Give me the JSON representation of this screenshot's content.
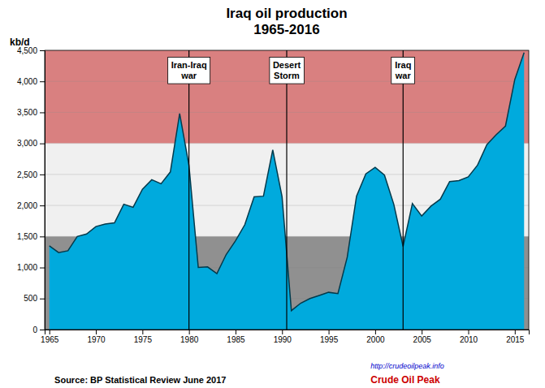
{
  "chart_data": {
    "type": "area",
    "title": "Iraq oil production",
    "subtitle": "1965-2016",
    "y_label": "kb/d",
    "source": "Source: BP Statistical Review  June 2017",
    "credits": [
      "http://crudeoilpeak.info",
      "Crude Oil Peak"
    ],
    "color": "#00aadd",
    "grid": "y",
    "xlim": [
      1964.5,
      2016.5
    ],
    "ylim": [
      0,
      4500
    ],
    "xticks": [
      1965,
      1970,
      1975,
      1980,
      1985,
      1990,
      1995,
      2000,
      2005,
      2010,
      2015
    ],
    "yticks": [
      0,
      500,
      {
        "value": 1000,
        "label": "1,000"
      },
      {
        "value": 1500,
        "label": "1,500"
      },
      {
        "value": 2000,
        "label": "2,000"
      },
      {
        "value": 2500,
        "label": "2,500"
      },
      {
        "value": 3000,
        "label": "3,000"
      },
      {
        "value": 3500,
        "label": "3,500"
      },
      {
        "value": 4000,
        "label": "4,000"
      },
      {
        "value": 4500,
        "label": "4,500"
      }
    ],
    "bands": [
      {
        "from": 3000,
        "to": 4500,
        "color": "#d98080"
      },
      {
        "from": 1500,
        "to": 3000,
        "color": "#f0f0f0"
      },
      {
        "from": 0,
        "to": 1500,
        "color": "#909090"
      }
    ],
    "annotations": [
      {
        "text": "Iran-Iraq\nwar",
        "x": 1980,
        "y": 4350
      },
      {
        "text": "Desert\nStorm",
        "x": 1990.5,
        "y": 4350
      },
      {
        "text": "Iraq\nwar",
        "x": 2003,
        "y": 4350
      }
    ],
    "x": [
      1965,
      1966,
      1967,
      1968,
      1969,
      1970,
      1971,
      1972,
      1973,
      1974,
      1975,
      1976,
      1977,
      1978,
      1979,
      1980,
      1981,
      1982,
      1983,
      1984,
      1985,
      1986,
      1987,
      1988,
      1989,
      1990,
      1991,
      1992,
      1993,
      1994,
      1995,
      1996,
      1997,
      1998,
      1999,
      2000,
      2001,
      2002,
      2003,
      2004,
      2005,
      2006,
      2007,
      2008,
      2009,
      2010,
      2011,
      2012,
      2013,
      2014,
      2015,
      2016
    ],
    "values": [
      1350,
      1240,
      1270,
      1500,
      1540,
      1660,
      1700,
      1720,
      2020,
      1970,
      2260,
      2415,
      2350,
      2540,
      3480,
      2645,
      1000,
      1010,
      900,
      1210,
      1430,
      1690,
      2140,
      2150,
      2895,
      2140,
      305,
      425,
      500,
      550,
      600,
      580,
      1165,
      2150,
      2510,
      2615,
      2490,
      2020,
      1340,
      2030,
      1830,
      1990,
      2100,
      2385,
      2400,
      2460,
      2650,
      2980,
      3140,
      3280,
      4030,
      4465
    ]
  }
}
